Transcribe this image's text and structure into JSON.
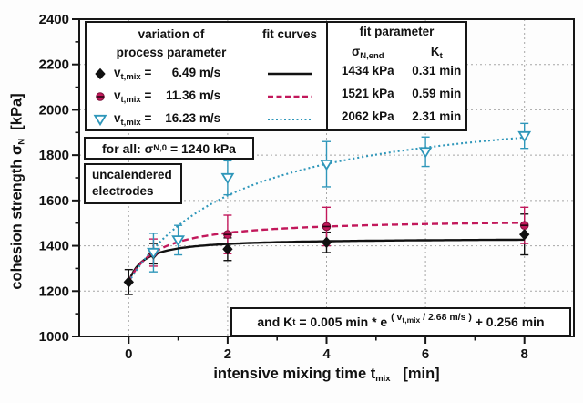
{
  "chart_data": {
    "type": "scatter",
    "title": "",
    "xlabel": {
      "pre": "intensive mixing time t",
      "sub": "mix",
      "post": "   [min]"
    },
    "ylabel": {
      "pre": "cohesion strength σ",
      "sub": "N",
      "post": "  [kPa]"
    },
    "xlim": [
      -1,
      9
    ],
    "ylim": [
      1000,
      2400
    ],
    "x_major_ticks": [
      0,
      2,
      4,
      6,
      8
    ],
    "x_minor_ticks": [
      1,
      3,
      5,
      7
    ],
    "y_major_ticks": [
      1000,
      1200,
      1400,
      1600,
      1800,
      2000,
      2200,
      2400
    ],
    "y_minor_ticks": [
      1100,
      1300,
      1500,
      1700,
      1900,
      2100,
      2300
    ],
    "x_gridlines": [
      0,
      2,
      4,
      6,
      8
    ],
    "y_gridlines": [
      1200,
      1400,
      1600,
      1800,
      2000,
      2200
    ],
    "grid": "dotted gray at major ticks",
    "legend_position": "top-left inside",
    "sigma_0_kPa": 1240,
    "fit_model": "sigma(t) = sigma_0 + (sigma_end - sigma_0) * t / (t + K)",
    "series": [
      {
        "name": "vt,mix = 6.49 m/s",
        "color": "#111111",
        "marker": "filled-diamond",
        "line_style": "solid",
        "fit": {
          "sigma_end_kPa": 1434,
          "K_min": 0.31
        },
        "points": [
          {
            "t": 0,
            "v": 1240,
            "err": 55
          },
          {
            "t": 0.5,
            "v": 1365,
            "err": 45
          },
          {
            "t": 2,
            "v": 1385,
            "err": 50
          },
          {
            "t": 4,
            "v": 1415,
            "err": 45
          },
          {
            "t": 8,
            "v": 1450,
            "err": 90
          }
        ]
      },
      {
        "name": "vt,mix = 11.36 m/s",
        "color": "#c2185b",
        "marker": "half-filled-circle",
        "line_style": "dashed",
        "fit": {
          "sigma_end_kPa": 1521,
          "K_min": 0.59
        },
        "points": [
          {
            "t": 0.5,
            "v": 1370,
            "err": 60
          },
          {
            "t": 2,
            "v": 1450,
            "err": 85
          },
          {
            "t": 4,
            "v": 1485,
            "err": 85
          },
          {
            "t": 8,
            "v": 1490,
            "err": 80
          }
        ]
      },
      {
        "name": "vt,mix = 16.23 m/s",
        "color": "#2f97ba",
        "marker": "open-triangle-down",
        "line_style": "dotted",
        "fit": {
          "sigma_end_kPa": 2062,
          "K_min": 2.31
        },
        "points": [
          {
            "t": 0.5,
            "v": 1370,
            "err": 85
          },
          {
            "t": 1,
            "v": 1425,
            "err": 65
          },
          {
            "t": 2,
            "v": 1700,
            "err": 75
          },
          {
            "t": 4,
            "v": 1760,
            "err": 100
          },
          {
            "t": 6,
            "v": 1815,
            "err": 65
          },
          {
            "t": 8,
            "v": 1885,
            "err": 55
          }
        ]
      }
    ]
  },
  "legend": {
    "header_variation_line1": "variation of",
    "header_variation_line2": "process parameter",
    "header_fit_curves": "fit curves",
    "header_fit_parameter": "fit parameter",
    "col_sigma": {
      "pre": "σ",
      "sub": "N,end"
    },
    "col_k": {
      "pre": "K",
      "sub": "t"
    },
    "rows": [
      {
        "v_pre": "v",
        "v_sub": "t,mix",
        "v_eq": " = ",
        "v_val": "6.49 m/s",
        "sigma": "1434 kPa",
        "k": "0.31 min"
      },
      {
        "v_pre": "v",
        "v_sub": "t,mix",
        "v_eq": " = ",
        "v_val": "11.36 m/s",
        "sigma": "1521 kPa",
        "k": "0.59 min"
      },
      {
        "v_pre": "v",
        "v_sub": "t,mix",
        "v_eq": " = ",
        "v_val": "16.23 m/s",
        "sigma": "2062 kPa",
        "k": "2.31 min"
      }
    ]
  },
  "annotations": {
    "for_all": {
      "pre": "for all: σ",
      "sub": "N,0",
      "post": " = 1240 kPa"
    },
    "condition_line1": "uncalendered",
    "condition_line2": "electrodes",
    "formula": {
      "p1": "and K",
      "s1": "t",
      "p2": " = 0.005 min * e ",
      "exp_pre": "( v",
      "exp_sub": "t,mix",
      "exp_post": " / 2.68 m/s )",
      "p3": " + 0.256 min"
    }
  }
}
